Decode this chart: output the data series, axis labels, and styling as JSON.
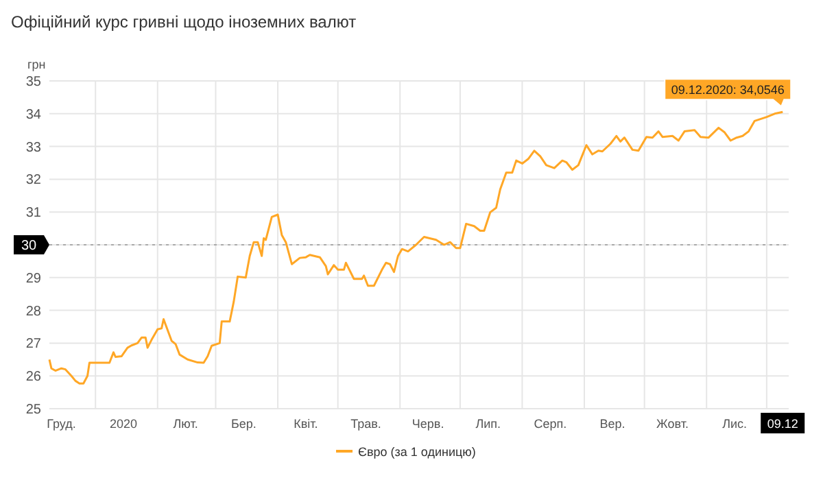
{
  "chart_data": {
    "type": "line",
    "title": "Офіційний курс гривні щодо іноземних валют",
    "ylabel": "грн",
    "xlim": [
      "2019-12-09",
      "2020-12-12"
    ],
    "ylim": [
      25,
      35
    ],
    "yticks": [
      25,
      26,
      27,
      28,
      29,
      {
        "value": 30,
        "label": null
      },
      31,
      32,
      33,
      34,
      35
    ],
    "xticks": [
      {
        "value": "2019-12-15",
        "label": "Груд."
      },
      {
        "value": "2020-01-01",
        "label": null
      },
      {
        "value": "2020-01-15",
        "label": "2020"
      },
      {
        "value": "2020-02-01",
        "label": null
      },
      {
        "value": "2020-02-15",
        "label": "Лют."
      },
      {
        "value": "2020-03-01",
        "label": null
      },
      {
        "value": "2020-03-15",
        "label": "Бер."
      },
      {
        "value": "2020-04-01",
        "label": null
      },
      {
        "value": "2020-04-15",
        "label": "Квіт."
      },
      {
        "value": "2020-05-01",
        "label": null
      },
      {
        "value": "2020-05-15",
        "label": "Трав."
      },
      {
        "value": "2020-06-01",
        "label": null
      },
      {
        "value": "2020-06-15",
        "label": "Черв."
      },
      {
        "value": "2020-07-01",
        "label": null
      },
      {
        "value": "2020-07-15",
        "label": "Лип."
      },
      {
        "value": "2020-08-01",
        "label": null
      },
      {
        "value": "2020-08-15",
        "label": "Серп."
      },
      {
        "value": "2020-09-01",
        "label": null
      },
      {
        "value": "2020-09-15",
        "label": "Вер."
      },
      {
        "value": "2020-10-01",
        "label": null
      },
      {
        "value": "2020-10-15",
        "label": "Жовт."
      },
      {
        "value": "2020-11-01",
        "label": null
      },
      {
        "value": "2020-11-15",
        "label": "Лис."
      },
      {
        "value": "2020-12-01",
        "label": null
      },
      {
        "value": "2020-12-09",
        "label": "09.12"
      }
    ],
    "grid": true,
    "legend": "bottom",
    "marker": "none",
    "line_style": "solid",
    "ref_lines": [
      {
        "axis": "y",
        "value": 30,
        "label": "30",
        "color": "#aaaaaa",
        "line_style": "dotted"
      }
    ],
    "annotations": [
      {
        "text": "09.12.2020: 34,0546",
        "x": "2020-12-09",
        "y": 34.0546
      }
    ],
    "series": [
      {
        "name": "Євро (за 1 одиницю)",
        "color": "#ffa726",
        "x": [
          "2019-12-09",
          "2019-12-10",
          "2019-12-12",
          "2019-12-15",
          "2019-12-17",
          "2019-12-20",
          "2019-12-22",
          "2019-12-24",
          "2019-12-26",
          "2019-12-28",
          "2019-12-29",
          "2020-01-01",
          "2020-01-08",
          "2020-01-10",
          "2020-01-11",
          "2020-01-14",
          "2020-01-17",
          "2020-01-19",
          "2020-01-22",
          "2020-01-24",
          "2020-01-26",
          "2020-01-27",
          "2020-01-29",
          "2020-02-01",
          "2020-02-03",
          "2020-02-04",
          "2020-02-08",
          "2020-02-10",
          "2020-02-12",
          "2020-02-16",
          "2020-02-21",
          "2020-02-24",
          "2020-02-26",
          "2020-02-28",
          "2020-03-03",
          "2020-03-04",
          "2020-03-08",
          "2020-03-10",
          "2020-03-12",
          "2020-03-16",
          "2020-03-18",
          "2020-03-20",
          "2020-03-22",
          "2020-03-24",
          "2020-03-25",
          "2020-03-26",
          "2020-03-29",
          "2020-04-01",
          "2020-04-03",
          "2020-04-05",
          "2020-04-08",
          "2020-04-12",
          "2020-04-15",
          "2020-04-17",
          "2020-04-22",
          "2020-04-25",
          "2020-04-26",
          "2020-04-29",
          "2020-05-01",
          "2020-05-04",
          "2020-05-05",
          "2020-05-09",
          "2020-05-13",
          "2020-05-14",
          "2020-05-16",
          "2020-05-19",
          "2020-05-23",
          "2020-05-25",
          "2020-05-27",
          "2020-05-29",
          "2020-05-31",
          "2020-06-02",
          "2020-06-05",
          "2020-06-09",
          "2020-06-13",
          "2020-06-19",
          "2020-06-23",
          "2020-06-26",
          "2020-06-29",
          "2020-07-01",
          "2020-07-04",
          "2020-07-08",
          "2020-07-11",
          "2020-07-13",
          "2020-07-16",
          "2020-07-19",
          "2020-07-21",
          "2020-07-24",
          "2020-07-27",
          "2020-07-29",
          "2020-08-01",
          "2020-08-04",
          "2020-08-07",
          "2020-08-10",
          "2020-08-13",
          "2020-08-17",
          "2020-08-21",
          "2020-08-23",
          "2020-08-26",
          "2020-08-29",
          "2020-09-02",
          "2020-09-05",
          "2020-09-08",
          "2020-09-10",
          "2020-09-14",
          "2020-09-17",
          "2020-09-19",
          "2020-09-21",
          "2020-09-25",
          "2020-09-28",
          "2020-10-02",
          "2020-10-05",
          "2020-10-08",
          "2020-10-10",
          "2020-10-15",
          "2020-10-18",
          "2020-10-21",
          "2020-10-26",
          "2020-10-29",
          "2020-11-02",
          "2020-11-07",
          "2020-11-10",
          "2020-11-13",
          "2020-11-16",
          "2020-11-19",
          "2020-11-22",
          "2020-11-25",
          "2020-12-01",
          "2020-12-05",
          "2020-12-09"
        ],
        "values": [
          26.5,
          26.23,
          26.16,
          26.23,
          26.2,
          26.0,
          25.85,
          25.77,
          25.77,
          26.0,
          26.4,
          26.4,
          26.4,
          26.72,
          26.58,
          26.6,
          26.86,
          26.93,
          27.0,
          27.17,
          27.17,
          26.86,
          27.1,
          27.42,
          27.45,
          27.73,
          27.07,
          26.97,
          26.65,
          26.5,
          26.41,
          26.4,
          26.6,
          26.92,
          27.0,
          27.66,
          27.66,
          28.26,
          29.03,
          29.0,
          29.66,
          30.08,
          30.08,
          29.66,
          30.2,
          30.15,
          30.85,
          30.92,
          30.3,
          30.08,
          29.41,
          29.6,
          29.62,
          29.69,
          29.62,
          29.35,
          29.1,
          29.38,
          29.24,
          29.24,
          29.45,
          28.96,
          28.96,
          29.06,
          28.75,
          28.75,
          29.24,
          29.45,
          29.41,
          29.17,
          29.66,
          29.87,
          29.8,
          30.0,
          30.24,
          30.15,
          30.0,
          30.08,
          29.9,
          29.9,
          30.64,
          30.57,
          30.43,
          30.43,
          30.99,
          31.13,
          31.69,
          32.2,
          32.2,
          32.57,
          32.48,
          32.62,
          32.87,
          32.7,
          32.43,
          32.34,
          32.57,
          32.52,
          32.29,
          32.43,
          33.04,
          32.76,
          32.87,
          32.85,
          33.08,
          33.32,
          33.15,
          33.27,
          32.9,
          32.87,
          33.29,
          33.27,
          33.46,
          33.29,
          33.32,
          33.18,
          33.46,
          33.5,
          33.29,
          33.27,
          33.57,
          33.43,
          33.18,
          33.27,
          33.32,
          33.46,
          33.78,
          33.9,
          34.0,
          34.0546
        ]
      }
    ]
  }
}
